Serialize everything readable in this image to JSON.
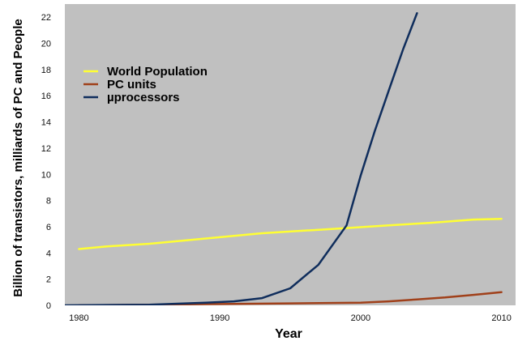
{
  "chart_data": {
    "type": "line",
    "title": "",
    "xlabel": "Year",
    "ylabel": "Billion of transistors, milliards of PC and People",
    "xlim": [
      1979,
      2011
    ],
    "ylim": [
      0,
      23
    ],
    "xticks": [
      1980,
      1990,
      2000,
      2010
    ],
    "yticks": [
      0,
      2,
      4,
      6,
      8,
      10,
      12,
      14,
      16,
      18,
      20,
      22
    ],
    "grid": false,
    "legend_position": "top-left",
    "plot_background": "#c0c0c0",
    "series": [
      {
        "name": "World Population",
        "color": "#ffff33",
        "x": [
          1980,
          1982,
          1985,
          1988,
          1990,
          1993,
          1996,
          1999,
          2002,
          2005,
          2008,
          2010
        ],
        "y": [
          4.3,
          4.5,
          4.7,
          5.0,
          5.2,
          5.5,
          5.7,
          5.9,
          6.1,
          6.3,
          6.55,
          6.6
        ]
      },
      {
        "name": "PC units",
        "color": "#a0401a",
        "x": [
          1980,
          1985,
          1990,
          1995,
          2000,
          2002,
          2004,
          2006,
          2008,
          2010
        ],
        "y": [
          0.0,
          0.05,
          0.1,
          0.15,
          0.2,
          0.3,
          0.45,
          0.6,
          0.8,
          1.0
        ]
      },
      {
        "name": "µprocessors",
        "color": "#0f2d5c",
        "x": [
          1979,
          1985,
          1989,
          1991,
          1993,
          1995,
          1997,
          1999,
          2000,
          2001,
          2002,
          2003,
          2004
        ],
        "y": [
          0.0,
          0.05,
          0.2,
          0.3,
          0.55,
          1.3,
          3.1,
          6.1,
          9.9,
          13.3,
          16.4,
          19.5,
          22.3
        ]
      }
    ]
  }
}
